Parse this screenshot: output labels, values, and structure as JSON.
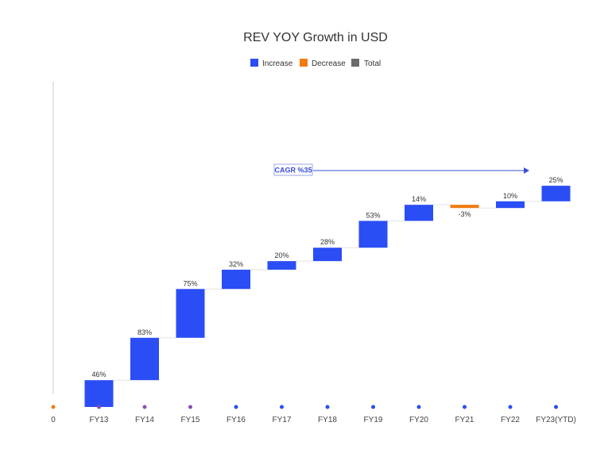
{
  "chart_data": {
    "type": "bar",
    "subtype": "waterfall",
    "title": "REV YOY Growth in USD",
    "xlabel": "",
    "ylabel": "",
    "categories": [
      "0",
      "FY13",
      "FY14",
      "FY15",
      "FY16",
      "FY17",
      "FY18",
      "FY19",
      "FY20",
      "FY21",
      "FY22",
      "FY23(YTD)"
    ],
    "series": [
      {
        "values": [
          0,
          1.0,
          1.58,
          1.82,
          0.72,
          0.32,
          0.5,
          1.0,
          0.6,
          -0.12,
          0.25,
          0.58
        ]
      }
    ],
    "data_labels": [
      "",
      "46%",
      "83%",
      "75%",
      "32%",
      "20%",
      "28%",
      "53%",
      "14%",
      "-3%",
      "10%",
      "25%"
    ],
    "bar_types": [
      "none",
      "increase",
      "increase",
      "increase",
      "increase",
      "increase",
      "increase",
      "increase",
      "increase",
      "decrease",
      "increase",
      "increase"
    ],
    "ylim": [
      0,
      11.5
    ],
    "grid": false,
    "legend": {
      "placement": "top-center",
      "entries": [
        {
          "label": "Increase",
          "color": "#2b4df5"
        },
        {
          "label": "Decrease",
          "color": "#f07c12"
        },
        {
          "label": "Total",
          "color": "#6b6b6b"
        }
      ]
    },
    "colors": {
      "increase": "#2b4df5",
      "decrease": "#f07c12",
      "total": "#6b6b6b",
      "dot_start": "#f07c12",
      "dot_mid": "#8a4fb0",
      "dot_end": "#2b4df5"
    },
    "annotation": {
      "text": "CAGR %35",
      "color": "#3a4fd8"
    }
  }
}
